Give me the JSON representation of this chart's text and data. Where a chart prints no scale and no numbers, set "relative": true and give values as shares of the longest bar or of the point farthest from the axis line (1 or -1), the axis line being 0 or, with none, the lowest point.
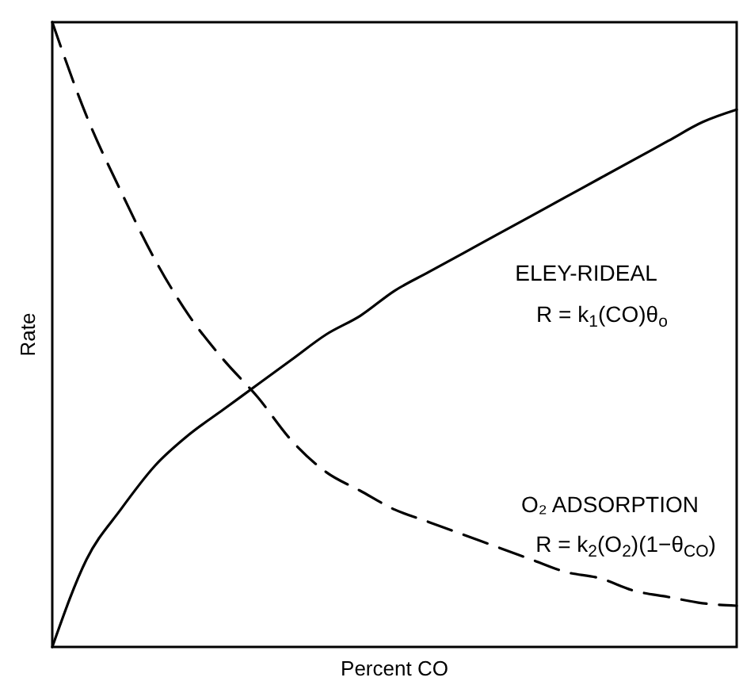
{
  "chart_data": {
    "type": "line",
    "relative": true,
    "xlabel": "Percent CO",
    "ylabel": "Rate",
    "categories": [
      null,
      null,
      null,
      null,
      null,
      null,
      null,
      null,
      null,
      null,
      null,
      null,
      null,
      null,
      null,
      null,
      null,
      null,
      null,
      null,
      null
    ],
    "series": [
      {
        "name": "ELEY-RIDEAL",
        "color": "#000000",
        "line_style": "solid",
        "values": [
          0,
          0.14,
          0.22,
          0.29,
          0.34,
          0.38,
          0.42,
          0.46,
          0.5,
          0.53,
          0.57,
          0.6,
          0.63,
          0.66,
          0.69,
          0.72,
          0.75,
          0.78,
          0.81,
          0.84,
          0.86
        ]
      },
      {
        "name": "O₂ ADSORPTION",
        "color": "#000000",
        "line_style": "dashed",
        "values": [
          1,
          0.85,
          0.73,
          0.62,
          0.53,
          0.46,
          0.4,
          0.33,
          0.28,
          0.25,
          0.22,
          0.2,
          0.18,
          0.16,
          0.14,
          0.12,
          0.11,
          0.09,
          0.08,
          0.07,
          0.066
        ]
      }
    ],
    "annotations": [
      "R = k$_{1}$(CO)θ$_{o}$",
      "R = k$_{2}$(O$_{2}$)(1−θ$_{CO}$)"
    ]
  }
}
